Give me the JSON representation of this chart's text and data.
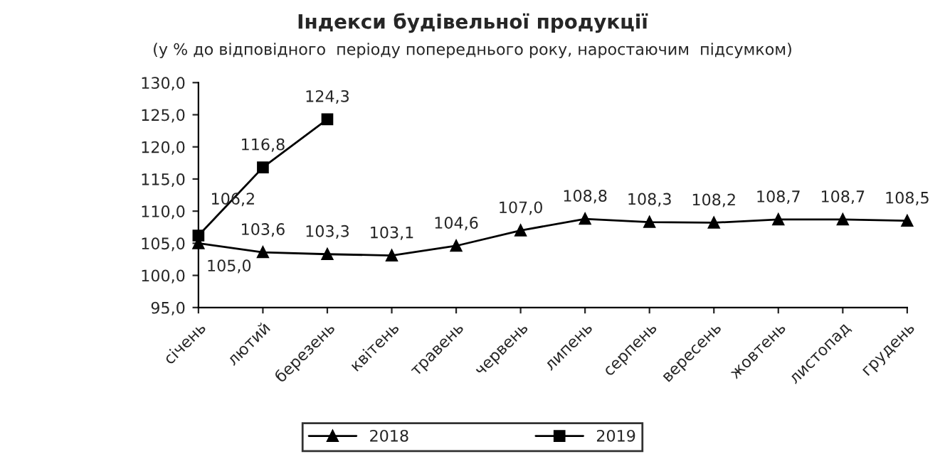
{
  "chart_data": {
    "type": "line",
    "title": "Індекси будівельної продукції",
    "subtitle": "(у % до відповідного  періоду попереднього року, наростаючим  підсумком)",
    "categories": [
      "січень",
      "лютий",
      "березень",
      "квітень",
      "травень",
      "червень",
      "липень",
      "серпень",
      "вересень",
      "жовтень",
      "листопад",
      "грудень"
    ],
    "series": [
      {
        "name": "2018",
        "color": "#000000",
        "marker": "triangle",
        "values": [
          105.0,
          103.6,
          103.3,
          103.1,
          104.6,
          107.0,
          108.8,
          108.3,
          108.2,
          108.7,
          108.7,
          108.5
        ],
        "value_labels": [
          "105,0",
          "103,6",
          "103,3",
          "103,1",
          "104,6",
          "107,0",
          "108,8",
          "108,3",
          "108,2",
          "108,7",
          "108,7",
          "108,5"
        ]
      },
      {
        "name": "2019",
        "color": "#000000",
        "marker": "square",
        "values": [
          106.2,
          116.8,
          124.3,
          null,
          null,
          null,
          null,
          null,
          null,
          null,
          null,
          null
        ],
        "value_labels": [
          "106,2",
          "116,8",
          "124,3",
          null,
          null,
          null,
          null,
          null,
          null,
          null,
          null,
          null
        ]
      }
    ],
    "ylim": [
      95,
      130
    ],
    "yticks": [
      {
        "value": 95,
        "label": "95,0"
      },
      {
        "value": 100,
        "label": "100,0"
      },
      {
        "value": 105,
        "label": "105,0"
      },
      {
        "value": 110,
        "label": "110,0"
      },
      {
        "value": 115,
        "label": "115,0"
      },
      {
        "value": 120,
        "label": "120,0"
      },
      {
        "value": 125,
        "label": "125,0"
      },
      {
        "value": 130,
        "label": "130,0"
      }
    ],
    "grid": false,
    "legend": "bottom",
    "line_style": "solid"
  }
}
